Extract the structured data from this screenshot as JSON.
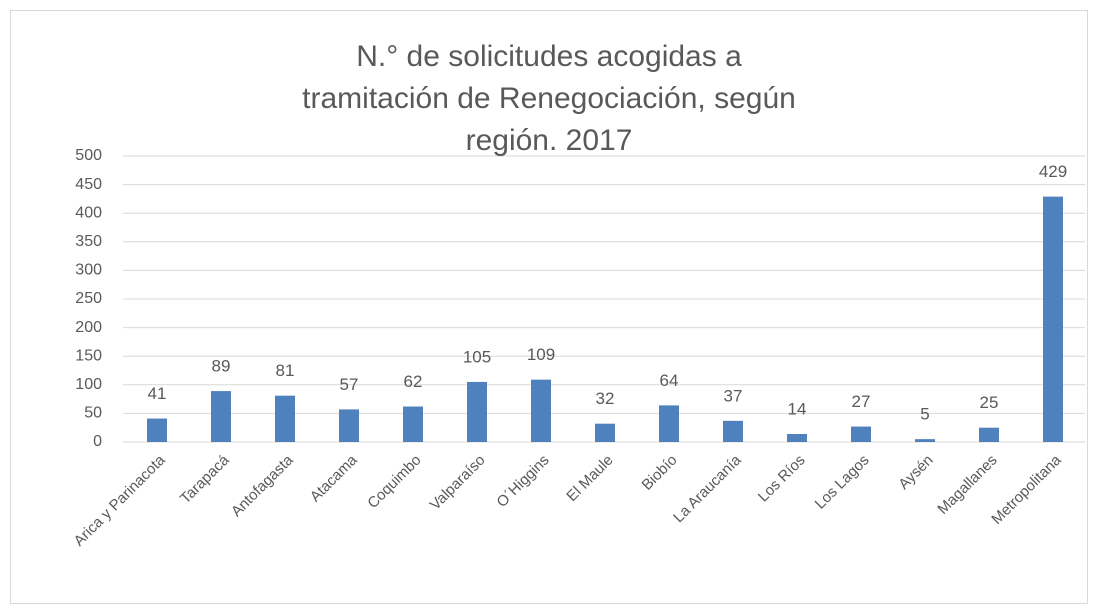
{
  "chart_data": {
    "type": "bar",
    "title": "N.° de solicitudes acogidas a tramitación de Renegociación, según región. 2017",
    "categories": [
      "Arica y Parinacota",
      "Tarapacá",
      "Antofagasta",
      "Atacama",
      "Coquimbo",
      "Valparaíso",
      "O´Higgins",
      "El Maule",
      "Biobío",
      "La Araucanía",
      "Los Ríos",
      "Los Lagos",
      "Aysén",
      "Magallanes",
      "Metropolitana"
    ],
    "values": [
      41,
      89,
      81,
      57,
      62,
      105,
      109,
      32,
      64,
      37,
      14,
      27,
      5,
      25,
      429
    ],
    "color": "#4f81bd",
    "ylim": [
      0,
      500
    ],
    "yticks": [
      0,
      50,
      100,
      150,
      200,
      250,
      300,
      350,
      400,
      450,
      500
    ],
    "grid": true
  }
}
